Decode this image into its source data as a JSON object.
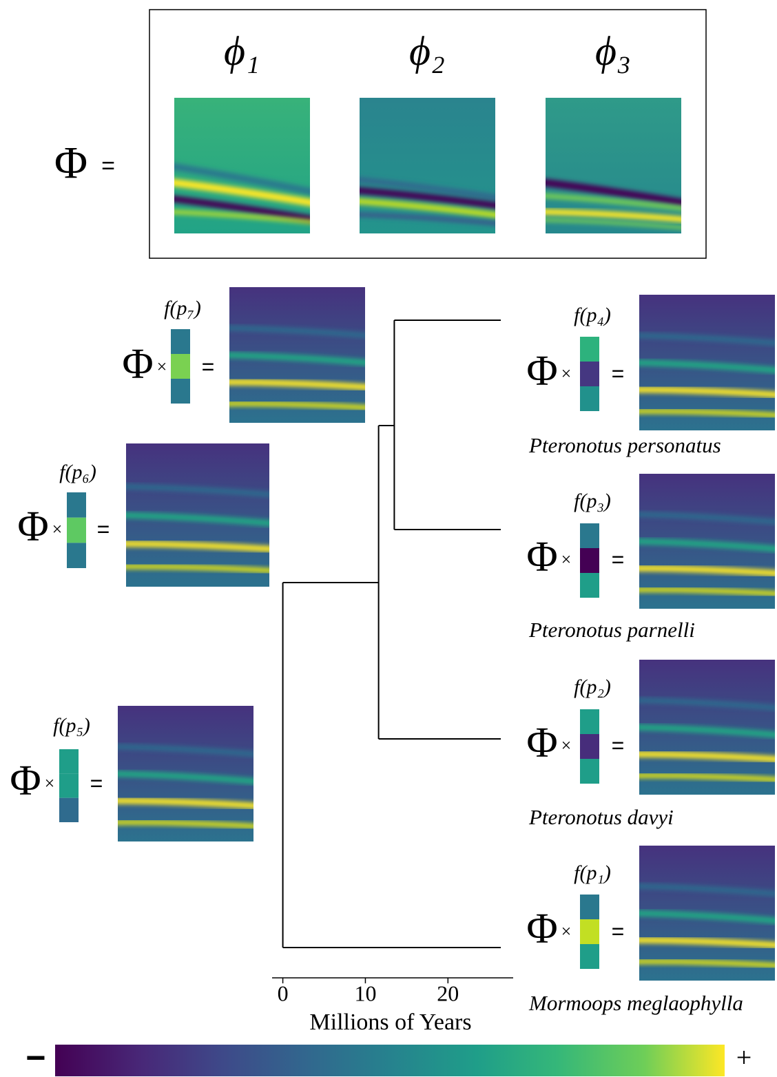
{
  "basis": {
    "lhs": "Φ",
    "equals": "=",
    "components": [
      {
        "label": "ϕ₁"
      },
      {
        "label": "ϕ₂"
      },
      {
        "label": "ϕ₃"
      }
    ]
  },
  "product_symbol": "×",
  "nodes": [
    {
      "label": "f(p₁)",
      "species": "Mormoops meglaophylla",
      "time": 26.4,
      "coefficients": [
        "#2a788e",
        "#c2df23",
        "#1f9e89"
      ]
    },
    {
      "label": "f(p₂)",
      "species": "Pteronotus davyi",
      "time": 26.4,
      "coefficients": [
        "#1f9e89",
        "#472d7b",
        "#1f9e89"
      ]
    },
    {
      "label": "f(p₃)",
      "species": "Pteronotus parnelli",
      "time": 26.4,
      "coefficients": [
        "#2a788e",
        "#440154",
        "#1f9e89"
      ]
    },
    {
      "label": "f(p₄)",
      "species": "Pteronotus personatus",
      "time": 26.4,
      "coefficients": [
        "#2db27d",
        "#453781",
        "#21918c"
      ]
    },
    {
      "label": "f(p₅)",
      "time": 0,
      "coefficients": [
        "#1f9e89",
        "#1f9e89",
        "#2f6b8e"
      ]
    },
    {
      "label": "f(p₆)",
      "time": 11.6,
      "coefficients": [
        "#2a788e",
        "#5ec962",
        "#2a788e"
      ]
    },
    {
      "label": "f(p₇)",
      "time": 13.5,
      "coefficients": [
        "#2a788e",
        "#7ad151",
        "#2a788e"
      ]
    }
  ],
  "tree": {
    "xlabel": "Millions of Years",
    "xlim": [
      -1.3,
      27.9
    ],
    "xticks": [
      0,
      10,
      20
    ]
  },
  "colorbar": {
    "low": "−",
    "high": "+"
  }
}
